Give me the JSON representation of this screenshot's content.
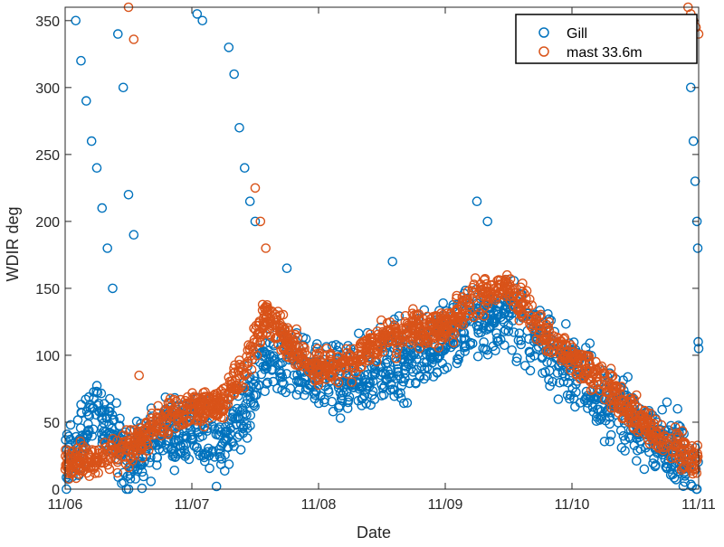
{
  "chart_data": {
    "type": "scatter",
    "xlabel": "Date",
    "ylabel": "WDIR deg",
    "xlim": [
      "2023-11-06",
      "2023-11-11"
    ],
    "ylim": [
      0,
      360
    ],
    "x_ticks": [
      "11/06",
      "11/07",
      "11/08",
      "11/09",
      "11/10",
      "11/11"
    ],
    "y_ticks": [
      0,
      50,
      100,
      150,
      200,
      250,
      300,
      350
    ],
    "grid": false,
    "legend_position": "top-right",
    "series": [
      {
        "name": "Gill",
        "color": "#0072BD",
        "marker": "circle-open",
        "profile": [
          [
            "2023-11-06",
            20
          ],
          [
            "2023-11-06T06:00",
            60
          ],
          [
            "2023-11-06T12:00",
            20
          ],
          [
            "2023-11-06T18:00",
            40
          ],
          [
            "2023-11-07T00:00",
            45
          ],
          [
            "2023-11-07T06:00",
            30
          ],
          [
            "2023-11-07T10:00",
            60
          ],
          [
            "2023-11-07T14:00",
            100
          ],
          [
            "2023-11-07T18:00",
            90
          ],
          [
            "2023-11-08T00:00",
            85
          ],
          [
            "2023-11-08T06:00",
            80
          ],
          [
            "2023-11-08T12:00",
            90
          ],
          [
            "2023-11-08T18:00",
            100
          ],
          [
            "2023-11-09T00:00",
            110
          ],
          [
            "2023-11-09T06:00",
            125
          ],
          [
            "2023-11-09T12:00",
            130
          ],
          [
            "2023-11-09T18:00",
            110
          ],
          [
            "2023-11-10T00:00",
            90
          ],
          [
            "2023-11-10T06:00",
            70
          ],
          [
            "2023-11-10T12:00",
            50
          ],
          [
            "2023-11-10T18:00",
            30
          ],
          [
            "2023-11-11T00:00",
            10
          ]
        ],
        "outliers": [
          [
            "2023-11-06T02:00",
            350
          ],
          [
            "2023-11-06T03:00",
            320
          ],
          [
            "2023-11-06T04:00",
            290
          ],
          [
            "2023-11-06T05:00",
            260
          ],
          [
            "2023-11-06T06:00",
            240
          ],
          [
            "2023-11-06T07:00",
            210
          ],
          [
            "2023-11-06T08:00",
            180
          ],
          [
            "2023-11-06T09:00",
            150
          ],
          [
            "2023-11-06T10:00",
            340
          ],
          [
            "2023-11-06T11:00",
            300
          ],
          [
            "2023-11-06T12:00",
            220
          ],
          [
            "2023-11-06T13:00",
            190
          ],
          [
            "2023-11-07T01:00",
            355
          ],
          [
            "2023-11-07T02:00",
            350
          ],
          [
            "2023-11-07T07:00",
            330
          ],
          [
            "2023-11-07T08:00",
            310
          ],
          [
            "2023-11-07T09:00",
            270
          ],
          [
            "2023-11-07T10:00",
            240
          ],
          [
            "2023-11-07T11:00",
            215
          ],
          [
            "2023-11-07T12:00",
            200
          ],
          [
            "2023-11-07T18:00",
            165
          ],
          [
            "2023-11-08T14:00",
            170
          ],
          [
            "2023-11-09T06:00",
            215
          ],
          [
            "2023-11-09T08:00",
            200
          ],
          [
            "2023-11-10T18:00",
            65
          ],
          [
            "2023-11-10T20:00",
            60
          ],
          [
            "2023-11-10T22:00",
            340
          ],
          [
            "2023-11-10T22:30",
            300
          ],
          [
            "2023-11-10T23:00",
            260
          ],
          [
            "2023-11-10T23:20",
            230
          ],
          [
            "2023-11-10T23:40",
            200
          ],
          [
            "2023-11-10T23:50",
            180
          ],
          [
            "2023-11-10T23:55",
            110
          ],
          [
            "2023-11-11T00:00",
            105
          ]
        ]
      },
      {
        "name": "mast 33.6m",
        "color": "#D95319",
        "marker": "circle-open",
        "profile": [
          [
            "2023-11-06",
            20
          ],
          [
            "2023-11-06T06:00",
            20
          ],
          [
            "2023-11-06T12:00",
            30
          ],
          [
            "2023-11-06T18:00",
            50
          ],
          [
            "2023-11-07T00:00",
            60
          ],
          [
            "2023-11-07T06:00",
            65
          ],
          [
            "2023-11-07T10:00",
            90
          ],
          [
            "2023-11-07T14:00",
            130
          ],
          [
            "2023-11-07T18:00",
            110
          ],
          [
            "2023-11-08T00:00",
            90
          ],
          [
            "2023-11-08T06:00",
            95
          ],
          [
            "2023-11-08T12:00",
            110
          ],
          [
            "2023-11-08T18:00",
            120
          ],
          [
            "2023-11-09T00:00",
            120
          ],
          [
            "2023-11-09T06:00",
            145
          ],
          [
            "2023-11-09T12:00",
            150
          ],
          [
            "2023-11-09T18:00",
            120
          ],
          [
            "2023-11-10T00:00",
            100
          ],
          [
            "2023-11-10T06:00",
            80
          ],
          [
            "2023-11-10T12:00",
            55
          ],
          [
            "2023-11-10T18:00",
            35
          ],
          [
            "2023-11-11T00:00",
            20
          ]
        ],
        "outliers": [
          [
            "2023-11-06T12:00",
            360
          ],
          [
            "2023-11-06T13:00",
            336
          ],
          [
            "2023-11-06T14:00",
            85
          ],
          [
            "2023-11-07T12:00",
            225
          ],
          [
            "2023-11-07T13:00",
            200
          ],
          [
            "2023-11-07T14:00",
            180
          ],
          [
            "2023-11-10T22:00",
            360
          ],
          [
            "2023-11-10T22:30",
            355
          ],
          [
            "2023-11-10T23:00",
            350
          ],
          [
            "2023-11-10T23:30",
            345
          ],
          [
            "2023-11-11T00:00",
            340
          ]
        ]
      }
    ]
  }
}
